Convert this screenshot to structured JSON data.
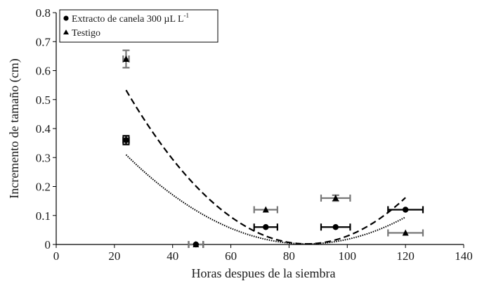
{
  "chart_data": {
    "type": "scatter",
    "title": "",
    "xlabel": "Horas despues de la siembra",
    "ylabel": "Incremento de tamaño (cm)",
    "xlim": [
      0,
      140
    ],
    "ylim": [
      0,
      0.8
    ],
    "x_ticks": [
      0,
      20,
      40,
      60,
      80,
      100,
      120,
      140
    ],
    "y_ticks": [
      0,
      0.1,
      0.2,
      0.3,
      0.4,
      0.5,
      0.6,
      0.7,
      0.8
    ],
    "x_tick_labels": [
      "0",
      "20",
      "40",
      "60",
      "80",
      "100",
      "120",
      "140"
    ],
    "y_tick_labels": [
      "0",
      "0.1",
      "0.2",
      "0.3",
      "0.4",
      "0.5",
      "0.6",
      "0.7",
      "0.8"
    ],
    "grid": false,
    "legend_position": "top-left",
    "series": [
      {
        "name": "Extracto de canela 300 µL L⁻¹",
        "legend_main": "Extracto de canela 300 µL L",
        "legend_sup": "-1",
        "marker": "circle",
        "color": "#000000",
        "error_color": "#000000",
        "points": [
          {
            "x": 24,
            "y": 0.36,
            "xerr": 1,
            "yerr": 0.015
          },
          {
            "x": 48,
            "y": 0.0,
            "xerr": 2.5,
            "yerr": 0
          },
          {
            "x": 72,
            "y": 0.06,
            "xerr": 4,
            "yerr": 0
          },
          {
            "x": 96,
            "y": 0.06,
            "xerr": 5,
            "yerr": 0
          },
          {
            "x": 120,
            "y": 0.12,
            "xerr": 6,
            "yerr": 0
          }
        ],
        "fit": {
          "style": "dotted",
          "x_range": [
            24,
            120
          ],
          "x_min": 86,
          "y_min": 0.002,
          "a": 8e-05
        }
      },
      {
        "name": "Testigo",
        "legend_main": "Testigo",
        "legend_sup": "",
        "marker": "triangle",
        "color": "#000000",
        "error_color": "#777777",
        "points": [
          {
            "x": 24,
            "y": 0.64,
            "xerr": 1,
            "yerr": 0.03
          },
          {
            "x": 48,
            "y": 0.0,
            "xerr": 2.5,
            "yerr": 0
          },
          {
            "x": 72,
            "y": 0.12,
            "xerr": 4,
            "yerr": 0
          },
          {
            "x": 96,
            "y": 0.16,
            "xerr": 5,
            "yerr": 0.01
          },
          {
            "x": 120,
            "y": 0.04,
            "xerr": 6,
            "yerr": 0
          }
        ],
        "fit": {
          "style": "dashed",
          "x_range": [
            24,
            120
          ],
          "x_min": 86,
          "y_min": 0.002,
          "a": 0.000138
        }
      }
    ]
  }
}
